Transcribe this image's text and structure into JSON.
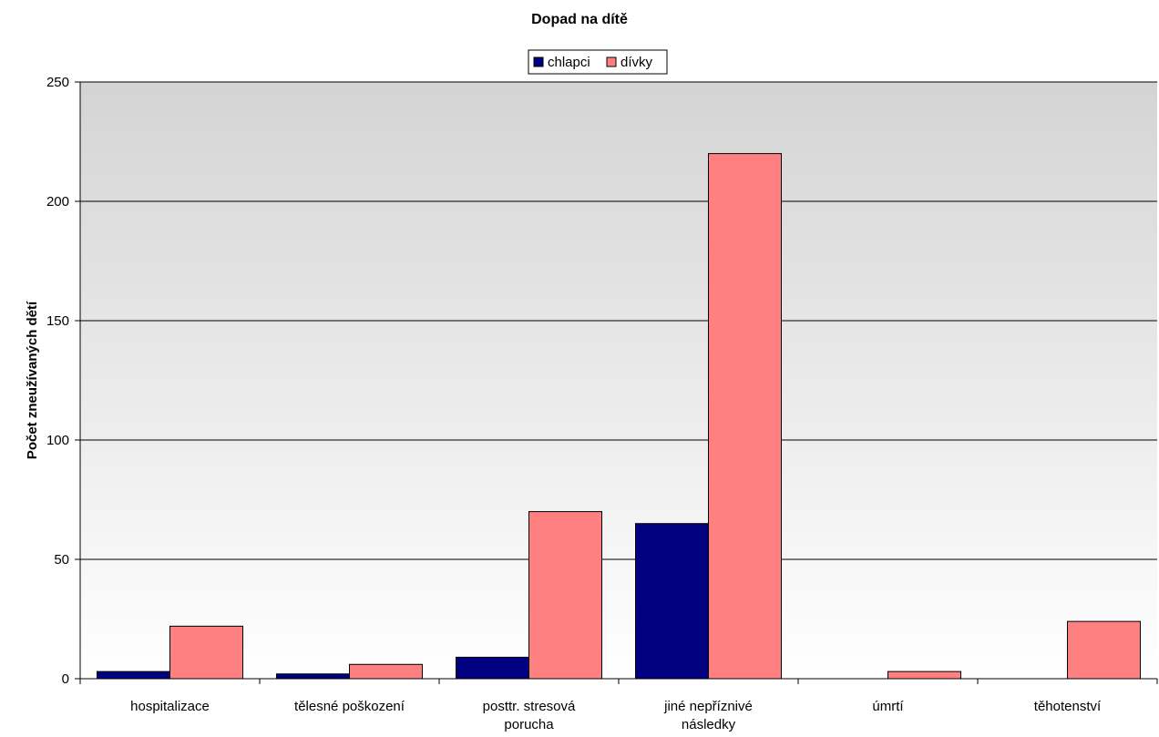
{
  "chart_data": {
    "type": "bar",
    "title": "Dopad na dítě",
    "xlabel": "",
    "ylabel": "Počet zneužívaných dětí",
    "ylim": [
      0,
      250
    ],
    "yticks": [
      "0",
      "50",
      "100",
      "150",
      "200",
      "250"
    ],
    "grid": true,
    "legend_position": "top-center",
    "categories": [
      [
        "hospitalizace"
      ],
      [
        "tělesné poškození"
      ],
      [
        "posttr. stresová",
        "porucha"
      ],
      [
        "jiné nepříznivé",
        "následky"
      ],
      [
        "úmrtí"
      ],
      [
        "těhotenství"
      ]
    ],
    "series": [
      {
        "name": "chlapci",
        "color": "#000080",
        "values": [
          3,
          2,
          9,
          65,
          0,
          0
        ]
      },
      {
        "name": "dívky",
        "color": "#ff8080",
        "values": [
          22,
          6,
          70,
          220,
          3,
          24
        ]
      }
    ]
  }
}
